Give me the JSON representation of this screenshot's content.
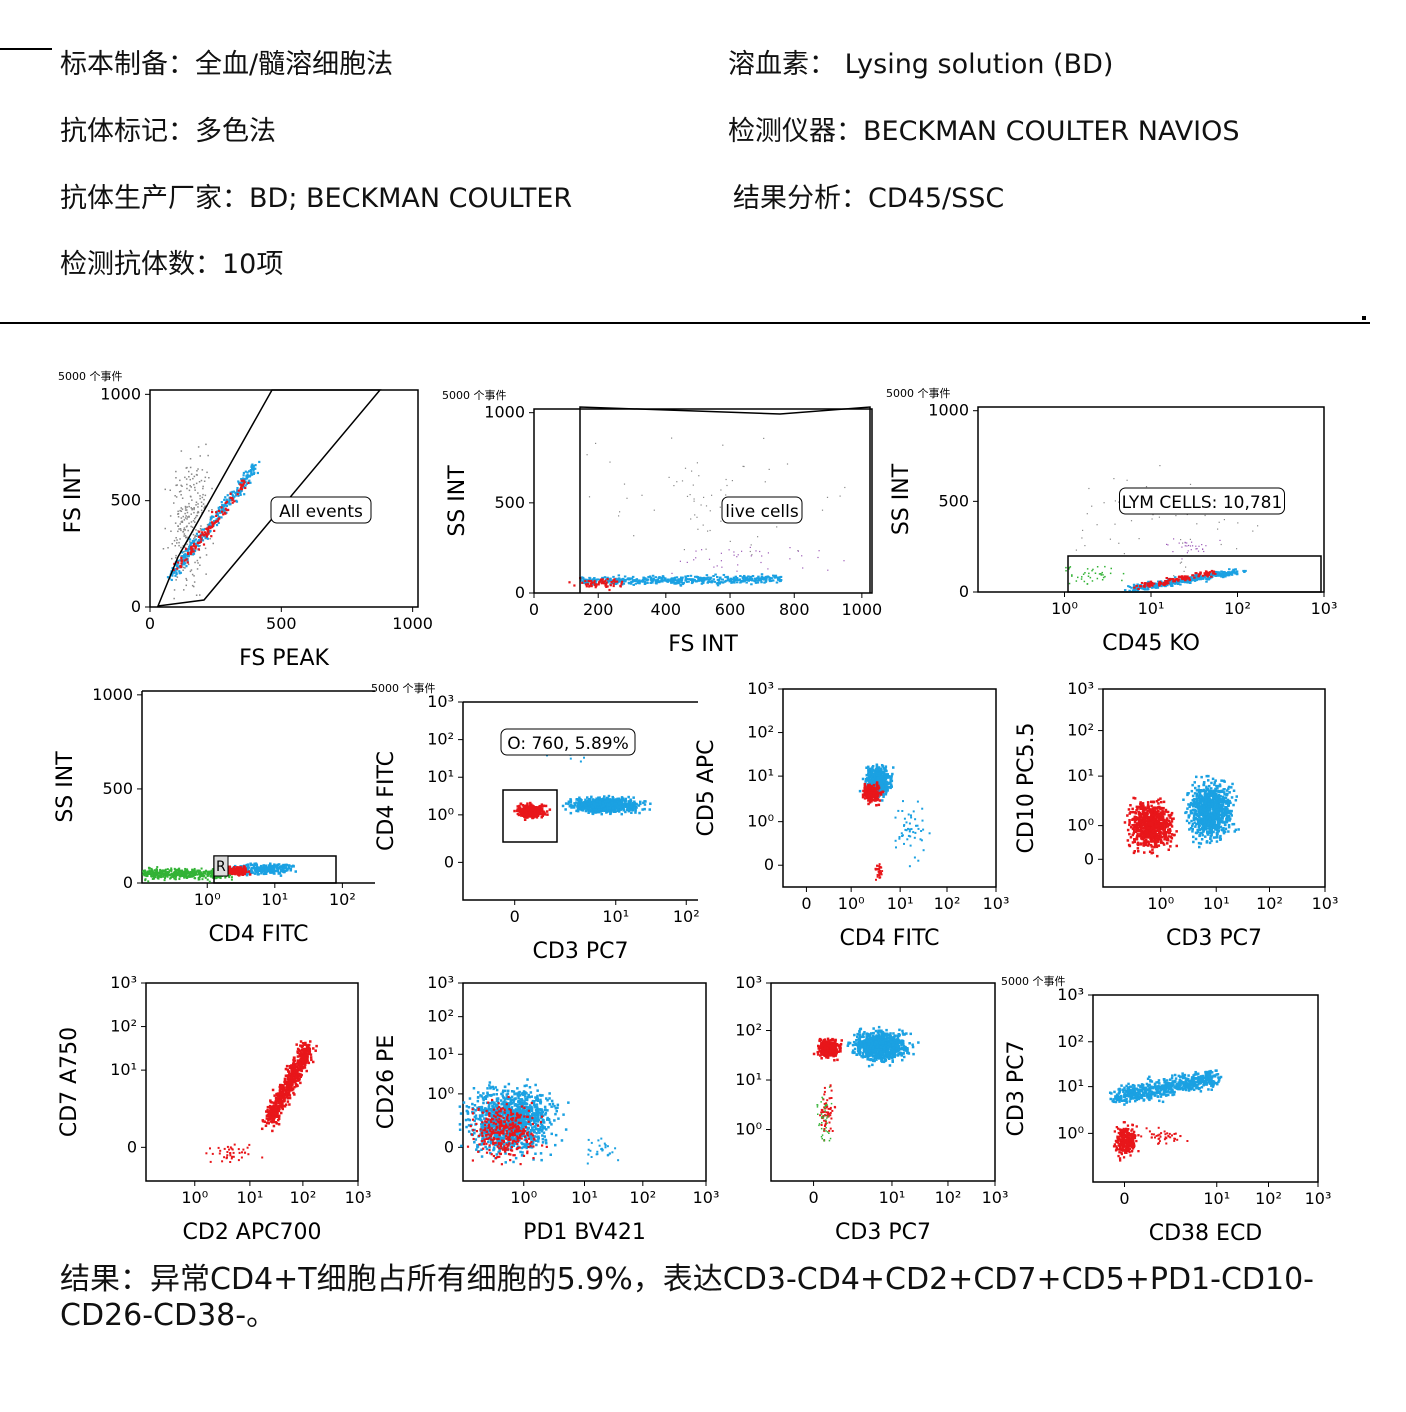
{
  "header": {
    "left": [
      "标本制备：全血/髓溶细胞法",
      "抗体标记：多色法",
      "抗体生产厂家：BD; BECKMAN COULTER",
      "检测抗体数：10项"
    ],
    "right": [
      "溶血素： Lysing solution (BD)",
      "检测仪器：BECKMAN COULTER NAVIOS",
      "结果分析：CD45/SSC"
    ]
  },
  "event_note": "5000 个事件",
  "colors": {
    "blue": "#1ba1e2",
    "red": "#e8161a",
    "green": "#33b336",
    "gray": "#888888",
    "purple": "#9b59b6"
  },
  "plots": [
    {
      "id": "p1",
      "xlabel": "FS PEAK",
      "ylabel": "FS INT",
      "xticks": [
        "0",
        "500",
        "1000"
      ],
      "yticks": [
        "0",
        "500",
        "1000"
      ],
      "gate": "All events",
      "event_note": true
    },
    {
      "id": "p2",
      "xlabel": "FS INT",
      "ylabel": "SS INT",
      "xticks": [
        "0",
        "200",
        "400",
        "600",
        "800",
        "1000"
      ],
      "yticks": [
        "0",
        "500",
        "1000"
      ],
      "gate": "live cells",
      "event_note": true
    },
    {
      "id": "p3",
      "xlabel": "CD45 KO",
      "ylabel": "SS INT",
      "xticks": [
        "10⁰",
        "10¹",
        "10²",
        "10³"
      ],
      "yticks": [
        "0",
        "500",
        "1000"
      ],
      "gate": "LYM CELLS: 10,781",
      "event_note": true
    },
    {
      "id": "p4",
      "xlabel": "CD4 FITC",
      "ylabel": "SS INT",
      "xticks": [
        "10⁰",
        "10¹",
        "10²"
      ],
      "yticks": [
        "0",
        "500",
        "1000"
      ],
      "gate": "R"
    },
    {
      "id": "p5",
      "xlabel": "CD3 PC7",
      "ylabel": "CD4 FITC",
      "xticks": [
        "0",
        "10¹",
        "10²"
      ],
      "yticks": [
        "0",
        "10⁰",
        "10¹",
        "10²",
        "10³"
      ],
      "gate": "O: 760,   5.89%",
      "event_note": true
    },
    {
      "id": "p6",
      "xlabel": "CD4 FITC",
      "ylabel": "CD5 APC",
      "xticks": [
        "0",
        "10⁰",
        "10¹",
        "10²",
        "10³"
      ],
      "yticks": [
        "0",
        "10⁰",
        "10¹",
        "10²",
        "10³"
      ]
    },
    {
      "id": "p7",
      "xlabel": "CD3 PC7",
      "ylabel": "CD10 PC5.5",
      "xticks": [
        "10⁰",
        "10¹",
        "10²",
        "10³"
      ],
      "yticks": [
        "0",
        "10⁰",
        "10¹",
        "10²",
        "10³"
      ]
    },
    {
      "id": "p8",
      "xlabel": "CD2 APC700",
      "ylabel": "CD7 A750",
      "xticks": [
        "10⁰",
        "10¹",
        "10²",
        "10³"
      ],
      "yticks": [
        "0",
        "10¹",
        "10²",
        "10³"
      ]
    },
    {
      "id": "p9",
      "xlabel": "PD1 BV421",
      "ylabel": "CD26 PE",
      "xticks": [
        "10⁰",
        "10¹",
        "10²",
        "10³"
      ],
      "yticks": [
        "0",
        "10⁰",
        "10¹",
        "10²",
        "10³"
      ]
    },
    {
      "id": "p10",
      "xlabel": "CD3 PC7",
      "ylabel": "",
      "xticks": [
        "0",
        "10¹",
        "10²",
        "10³"
      ],
      "yticks": [
        "10⁰",
        "10¹",
        "10²",
        "10³"
      ]
    },
    {
      "id": "p11",
      "xlabel": "CD38 ECD",
      "ylabel": "CD3 PC7",
      "xticks": [
        "0",
        "10¹",
        "10²",
        "10³"
      ],
      "yticks": [
        "10⁰",
        "10¹",
        "10²",
        "10³"
      ],
      "event_note": true
    }
  ],
  "conclusion": "结果：异常CD4+T细胞占所有细胞的5.9%，表达CD3-CD4+CD2+CD7+CD5+PD1-CD10-CD26-CD38-。"
}
